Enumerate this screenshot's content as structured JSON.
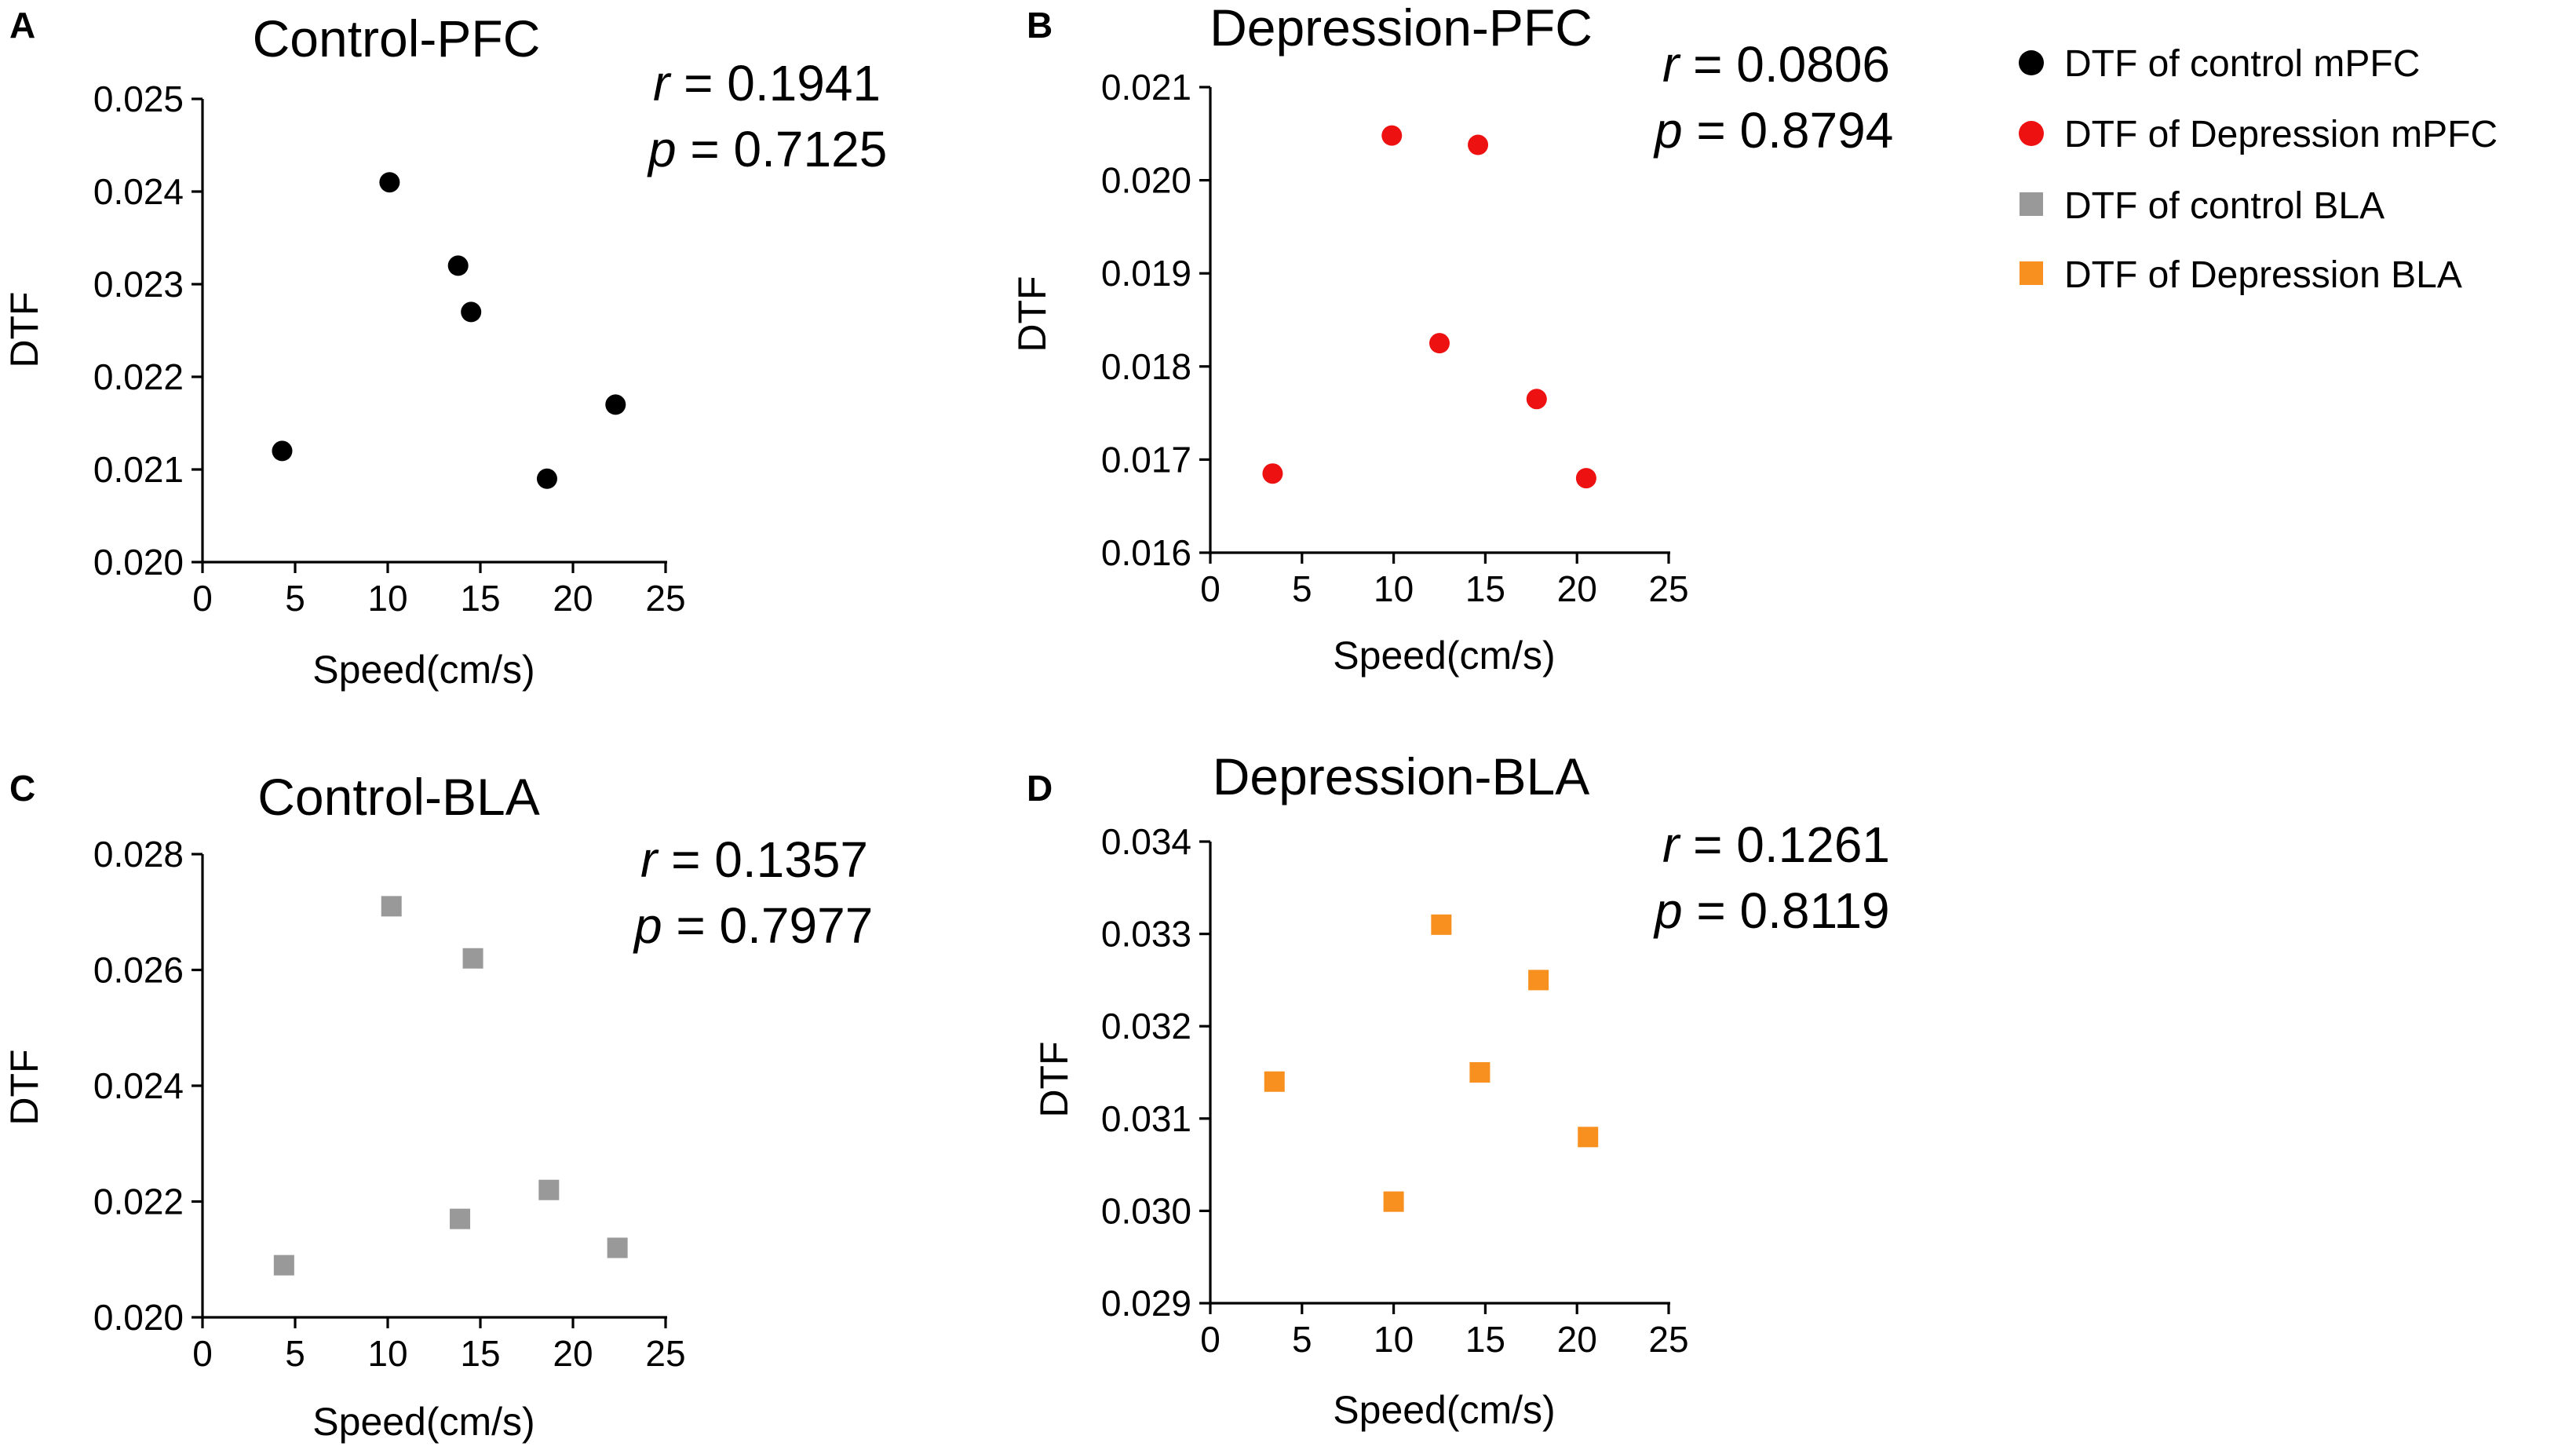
{
  "legend": [
    {
      "label": "DTF of control mPFC",
      "color": "#000000",
      "marker": "circle"
    },
    {
      "label": "DTF of Depression mPFC",
      "color": "#ee1111",
      "marker": "circle"
    },
    {
      "label": "DTF of control BLA",
      "color": "#999999",
      "marker": "square"
    },
    {
      "label": "DTF of Depression BLA",
      "color": "#f7901e",
      "marker": "square"
    }
  ],
  "chart_data": [
    {
      "panel": "A",
      "type": "scatter",
      "title": "Control-PFC",
      "xlabel": "Speed(cm/s)",
      "ylabel": "DTF",
      "xlim": [
        0,
        25
      ],
      "ylim": [
        0.02,
        0.025
      ],
      "xticks": [
        0,
        5,
        10,
        15,
        20,
        25
      ],
      "xtick_labels": [
        "0",
        "5",
        "10",
        "15",
        "20",
        "25"
      ],
      "yticks": [
        0.02,
        0.021,
        0.022,
        0.023,
        0.024,
        0.025
      ],
      "ytick_labels": [
        "0.020",
        "0.021",
        "0.022",
        "0.023",
        "0.024",
        "0.025"
      ],
      "r_label": "r",
      "r_value": "= 0.1941",
      "p_label": "p",
      "p_value": "= 0.7125",
      "marker": "circle",
      "color": "#000000",
      "series": [
        {
          "name": "DTF of control mPFC",
          "x": [
            4.3,
            10.1,
            13.8,
            14.5,
            18.6,
            22.3
          ],
          "y": [
            0.0212,
            0.0241,
            0.0232,
            0.0227,
            0.0209,
            0.0217
          ]
        }
      ]
    },
    {
      "panel": "B",
      "type": "scatter",
      "title": "Depression-PFC",
      "xlabel": "Speed(cm/s)",
      "ylabel": "DTF",
      "xlim": [
        0,
        25
      ],
      "ylim": [
        0.016,
        0.021
      ],
      "xticks": [
        0,
        5,
        10,
        15,
        20,
        25
      ],
      "xtick_labels": [
        "0",
        "5",
        "10",
        "15",
        "20",
        "25"
      ],
      "yticks": [
        0.016,
        0.017,
        0.018,
        0.019,
        0.02,
        0.021
      ],
      "ytick_labels": [
        "0.016",
        "0.017",
        "0.018",
        "0.019",
        "0.020",
        "0.021"
      ],
      "r_label": "r",
      "r_value": "= 0.0806",
      "p_label": "p",
      "p_value": "= 0.8794",
      "marker": "circle",
      "color": "#ee1111",
      "series": [
        {
          "name": "DTF of Depression mPFC",
          "x": [
            3.4,
            9.9,
            12.5,
            14.6,
            17.8,
            20.5
          ],
          "y": [
            0.01685,
            0.02048,
            0.01825,
            0.02038,
            0.01765,
            0.0168
          ]
        }
      ]
    },
    {
      "panel": "C",
      "type": "scatter",
      "title": "Control-BLA",
      "xlabel": "Speed(cm/s)",
      "ylabel": "DTF",
      "xlim": [
        0,
        25
      ],
      "ylim": [
        0.02,
        0.028
      ],
      "xticks": [
        0,
        5,
        10,
        15,
        20,
        25
      ],
      "xtick_labels": [
        "0",
        "5",
        "10",
        "15",
        "20",
        "25"
      ],
      "yticks": [
        0.02,
        0.022,
        0.024,
        0.026,
        0.028
      ],
      "ytick_labels": [
        "0.020",
        "0.022",
        "0.024",
        "0.026",
        "0.028"
      ],
      "r_label": "r",
      "r_value": "= 0.1357",
      "p_label": "p",
      "p_value": "= 0.7977",
      "marker": "square",
      "color": "#999999",
      "series": [
        {
          "name": "DTF of control BLA",
          "x": [
            4.4,
            10.2,
            13.9,
            14.6,
            18.7,
            22.4
          ],
          "y": [
            0.0209,
            0.0271,
            0.0217,
            0.0262,
            0.0222,
            0.0212
          ]
        }
      ]
    },
    {
      "panel": "D",
      "type": "scatter",
      "title": "Depression-BLA",
      "xlabel": "Speed(cm/s)",
      "ylabel": "DTF",
      "xlim": [
        0,
        25
      ],
      "ylim": [
        0.029,
        0.034
      ],
      "xticks": [
        0,
        5,
        10,
        15,
        20,
        25
      ],
      "xtick_labels": [
        "0",
        "5",
        "10",
        "15",
        "20",
        "25"
      ],
      "yticks": [
        0.029,
        0.03,
        0.031,
        0.032,
        0.033,
        0.034
      ],
      "ytick_labels": [
        "0.029",
        "0.030",
        "0.031",
        "0.032",
        "0.033",
        "0.034"
      ],
      "r_label": "r",
      "r_value": "= 0.1261",
      "p_label": "p",
      "p_value": "= 0.8119",
      "marker": "square",
      "color": "#f7901e",
      "series": [
        {
          "name": "DTF of Depression BLA",
          "x": [
            3.5,
            10.0,
            12.6,
            14.7,
            17.9,
            20.6
          ],
          "y": [
            0.0314,
            0.0301,
            0.0331,
            0.0315,
            0.0325,
            0.0308
          ]
        }
      ]
    }
  ]
}
